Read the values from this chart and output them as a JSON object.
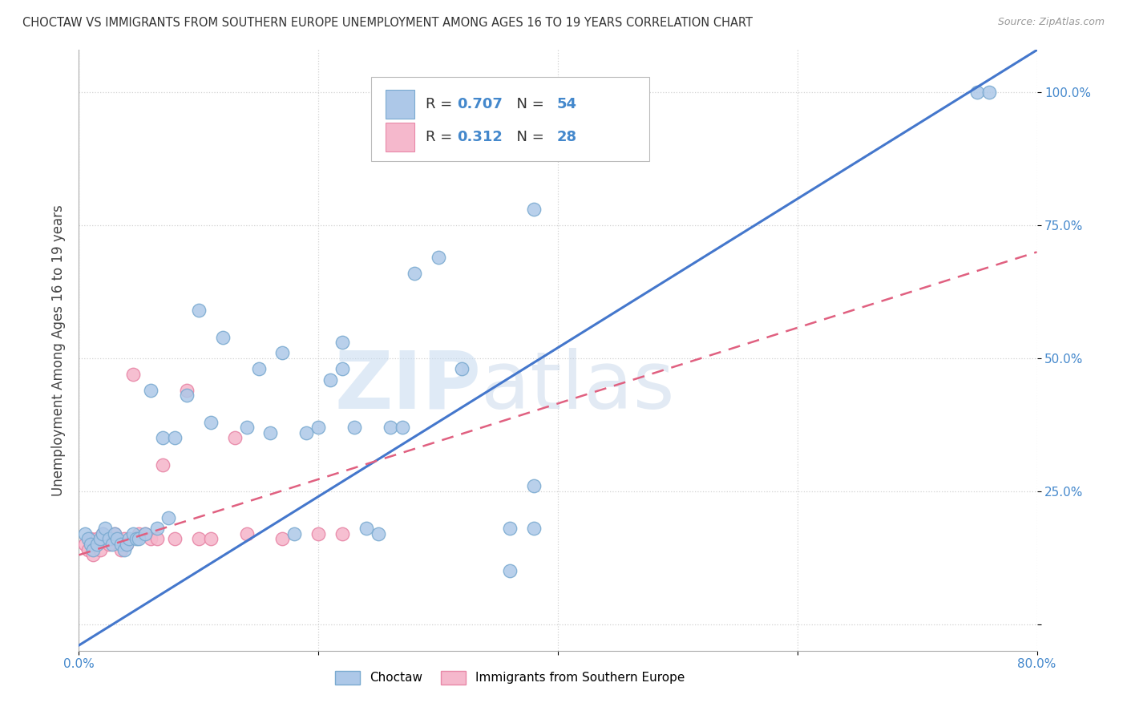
{
  "title": "CHOCTAW VS IMMIGRANTS FROM SOUTHERN EUROPE UNEMPLOYMENT AMONG AGES 16 TO 19 YEARS CORRELATION CHART",
  "source": "Source: ZipAtlas.com",
  "ylabel": "Unemployment Among Ages 16 to 19 years",
  "watermark_zip": "ZIP",
  "watermark_atlas": "atlas",
  "choctaw_color": "#adc8e8",
  "choctaw_edge": "#7aaad0",
  "immigrants_color": "#f5b8cc",
  "immigrants_edge": "#e888a8",
  "line_choctaw_color": "#4477cc",
  "line_immigrants_color": "#e06080",
  "R_choctaw": "0.707",
  "N_choctaw": "54",
  "R_immigrants": "0.312",
  "N_immigrants": "28",
  "xmin": 0.0,
  "xmax": 0.8,
  "ymin": -0.05,
  "ymax": 1.08,
  "choctaw_line_x0": 0.0,
  "choctaw_line_y0": -0.04,
  "choctaw_line_x1": 0.8,
  "choctaw_line_y1": 1.08,
  "immigrants_line_x0": 0.0,
  "immigrants_line_y0": 0.13,
  "immigrants_line_x1": 0.8,
  "immigrants_line_y1": 0.7,
  "choctaw_x": [
    0.005,
    0.008,
    0.01,
    0.012,
    0.015,
    0.018,
    0.02,
    0.022,
    0.025,
    0.028,
    0.03,
    0.032,
    0.035,
    0.038,
    0.04,
    0.042,
    0.045,
    0.048,
    0.05,
    0.055,
    0.06,
    0.065,
    0.07,
    0.075,
    0.08,
    0.09,
    0.1,
    0.11,
    0.12,
    0.14,
    0.15,
    0.16,
    0.17,
    0.18,
    0.19,
    0.2,
    0.21,
    0.22,
    0.23,
    0.25,
    0.26,
    0.27,
    0.28,
    0.3,
    0.32,
    0.22,
    0.24,
    0.36,
    0.38,
    0.38,
    0.36,
    0.75,
    0.76,
    0.38
  ],
  "choctaw_y": [
    0.17,
    0.16,
    0.15,
    0.14,
    0.15,
    0.16,
    0.17,
    0.18,
    0.16,
    0.15,
    0.17,
    0.16,
    0.15,
    0.14,
    0.15,
    0.16,
    0.17,
    0.16,
    0.16,
    0.17,
    0.44,
    0.18,
    0.35,
    0.2,
    0.35,
    0.43,
    0.59,
    0.38,
    0.54,
    0.37,
    0.48,
    0.36,
    0.51,
    0.17,
    0.36,
    0.37,
    0.46,
    0.48,
    0.37,
    0.17,
    0.37,
    0.37,
    0.66,
    0.69,
    0.48,
    0.53,
    0.18,
    0.18,
    0.18,
    0.26,
    0.1,
    1.0,
    1.0,
    0.78
  ],
  "immigrants_x": [
    0.005,
    0.008,
    0.01,
    0.012,
    0.015,
    0.018,
    0.02,
    0.025,
    0.028,
    0.03,
    0.035,
    0.038,
    0.04,
    0.045,
    0.05,
    0.055,
    0.06,
    0.065,
    0.07,
    0.08,
    0.09,
    0.1,
    0.11,
    0.13,
    0.14,
    0.17,
    0.2,
    0.22
  ],
  "immigrants_y": [
    0.15,
    0.14,
    0.16,
    0.13,
    0.16,
    0.14,
    0.17,
    0.15,
    0.16,
    0.17,
    0.14,
    0.16,
    0.15,
    0.47,
    0.17,
    0.17,
    0.16,
    0.16,
    0.3,
    0.16,
    0.44,
    0.16,
    0.16,
    0.35,
    0.17,
    0.16,
    0.17,
    0.17
  ]
}
